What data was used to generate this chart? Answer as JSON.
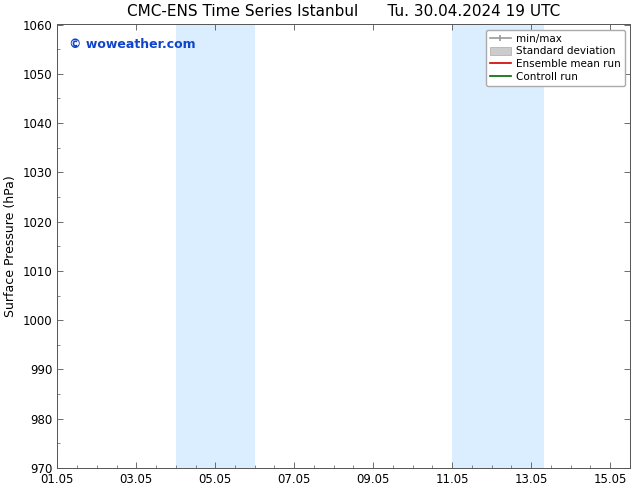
{
  "title_left": "CMC-ENS Time Series Istanbul",
  "title_right": "Tu. 30.04.2024 19 UTC",
  "ylabel": "Surface Pressure (hPa)",
  "xlim_min": 1.0,
  "xlim_max": 15.5,
  "ylim_min": 970,
  "ylim_max": 1060,
  "xtick_labels": [
    "01.05",
    "03.05",
    "05.05",
    "07.05",
    "09.05",
    "11.05",
    "13.05",
    "15.05"
  ],
  "xtick_positions": [
    1.0,
    3.0,
    5.0,
    7.0,
    9.0,
    11.0,
    13.0,
    15.0
  ],
  "ytick_positions": [
    970,
    980,
    990,
    1000,
    1010,
    1020,
    1030,
    1040,
    1050,
    1060
  ],
  "shaded_regions": [
    {
      "x_start": 4.0,
      "x_end": 6.0
    },
    {
      "x_start": 11.0,
      "x_end": 13.333
    }
  ],
  "shaded_color": "#daeeff",
  "background_color": "#ffffff",
  "watermark_text": "© woweather.com",
  "watermark_color": "#1144cc",
  "legend_labels": [
    "min/max",
    "Standard deviation",
    "Ensemble mean run",
    "Controll run"
  ],
  "legend_colors": [
    "#999999",
    "#cccccc",
    "#cc0000",
    "#006600"
  ],
  "title_fontsize": 11,
  "axis_label_fontsize": 9,
  "tick_fontsize": 8.5,
  "watermark_fontsize": 9
}
